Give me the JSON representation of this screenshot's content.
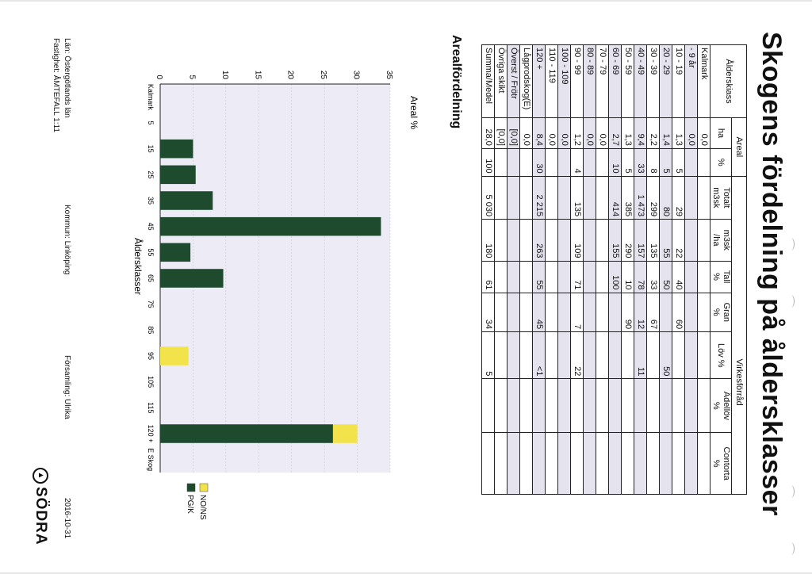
{
  "title": "Skogens fördelning på åldersklasser",
  "table": {
    "group_areal": "Areal",
    "group_virke": "Virkesförråd",
    "headers": {
      "alder": "Ålderskiass",
      "ha": "ha",
      "pct": "%",
      "tot1": "Totalt",
      "tot2": "m3sk",
      "mha1": "m3sk",
      "mha2": "/ha",
      "tall1": "Tall",
      "tall2": "%",
      "gran1": "Gran",
      "gran2": "%",
      "lov": "Löv %",
      "ade1": "Ädellöv",
      "ade2": "%",
      "con1": "Contorta",
      "con2": "%"
    },
    "rows": [
      {
        "label": "Kalmark",
        "ha": "0,0",
        "pct": "",
        "tot": "",
        "mha": "",
        "tall": "",
        "gran": "",
        "lov": "",
        "adel": "",
        "cont": ""
      },
      {
        "label": "- 9 år",
        "ha": "0,0",
        "pct": "",
        "tot": "",
        "mha": "",
        "tall": "",
        "gran": "",
        "lov": "",
        "adel": "",
        "cont": ""
      },
      {
        "label": "10 - 19",
        "ha": "1,3",
        "pct": "5",
        "tot": "29",
        "mha": "22",
        "tall": "40",
        "gran": "60",
        "lov": "",
        "adel": "",
        "cont": ""
      },
      {
        "label": "20 - 29",
        "ha": "1,4",
        "pct": "5",
        "tot": "80",
        "mha": "55",
        "tall": "50",
        "gran": "",
        "lov": "50",
        "adel": "",
        "cont": ""
      },
      {
        "label": "30 - 39",
        "ha": "2,2",
        "pct": "8",
        "tot": "299",
        "mha": "135",
        "tall": "33",
        "gran": "67",
        "lov": "",
        "adel": "",
        "cont": ""
      },
      {
        "label": "40 - 49",
        "ha": "9,4",
        "pct": "33",
        "tot": "1 473",
        "mha": "157",
        "tall": "78",
        "gran": "12",
        "lov": "11",
        "adel": "",
        "cont": ""
      },
      {
        "label": "50 - 59",
        "ha": "1,3",
        "pct": "5",
        "tot": "385",
        "mha": "290",
        "tall": "10",
        "gran": "90",
        "lov": "",
        "adel": "",
        "cont": ""
      },
      {
        "label": "60 - 69",
        "ha": "2,7",
        "pct": "10",
        "tot": "414",
        "mha": "155",
        "tall": "100",
        "gran": "",
        "lov": "",
        "adel": "",
        "cont": ""
      },
      {
        "label": "70 - 79",
        "ha": "0,0",
        "pct": "",
        "tot": "",
        "mha": "",
        "tall": "",
        "gran": "",
        "lov": "",
        "adel": "",
        "cont": ""
      },
      {
        "label": "80 - 89",
        "ha": "0,0",
        "pct": "",
        "tot": "",
        "mha": "",
        "tall": "",
        "gran": "",
        "lov": "",
        "adel": "",
        "cont": ""
      },
      {
        "label": "90 - 99",
        "ha": "1,2",
        "pct": "4",
        "tot": "135",
        "mha": "109",
        "tall": "71",
        "gran": "7",
        "lov": "22",
        "adel": "",
        "cont": ""
      },
      {
        "label": "100 - 109",
        "ha": "0,0",
        "pct": "",
        "tot": "",
        "mha": "",
        "tall": "",
        "gran": "",
        "lov": "",
        "adel": "",
        "cont": ""
      },
      {
        "label": "110 - 119",
        "ha": "0,0",
        "pct": "",
        "tot": "",
        "mha": "",
        "tall": "",
        "gran": "",
        "lov": "",
        "adel": "",
        "cont": ""
      },
      {
        "label": "120 +",
        "ha": "8,4",
        "pct": "30",
        "tot": "2 215",
        "mha": "263",
        "tall": "55",
        "gran": "45",
        "lov": "<1",
        "adel": "",
        "cont": ""
      },
      {
        "label": "Lågprodskog(E)",
        "ha": "0,0",
        "pct": "",
        "tot": "",
        "mha": "",
        "tall": "",
        "gran": "",
        "lov": "",
        "adel": "",
        "cont": ""
      },
      {
        "label": "Överst / Frötr",
        "ha": "[0,0]",
        "pct": "",
        "tot": "",
        "mha": "",
        "tall": "",
        "gran": "",
        "lov": "",
        "adel": "",
        "cont": ""
      },
      {
        "label": "Övriga skikt",
        "ha": "[0,0]",
        "pct": "",
        "tot": "",
        "mha": "",
        "tall": "",
        "gran": "",
        "lov": "",
        "adel": "",
        "cont": ""
      },
      {
        "label": "Summa/Medel",
        "ha": "28,0",
        "pct": "100",
        "tot": "5 030",
        "mha": "180",
        "tall": "61",
        "gran": "34",
        "lov": "5",
        "adel": "",
        "cont": ""
      }
    ]
  },
  "section_title": "Arealfördelning",
  "chart_data": {
    "type": "bar",
    "ylabel": "Areal %",
    "xlabel": "Åldersklasser",
    "ylim": [
      0,
      35
    ],
    "yticks": [
      "0",
      "5",
      "10",
      "15",
      "20",
      "25",
      "30",
      "35"
    ],
    "categories": [
      "Kalmark",
      "5",
      "15",
      "25",
      "35",
      "45",
      "55",
      "65",
      "75",
      "85",
      "95",
      "105",
      "115",
      "120 +",
      "E Skog"
    ],
    "series": [
      {
        "name": "PG/K",
        "color": "#1e4a2e",
        "values": [
          0,
          0,
          5,
          5.4,
          8,
          33.6,
          4.6,
          9.6,
          0,
          0,
          0,
          0,
          0,
          26.3,
          0
        ]
      },
      {
        "name": "NO/NS",
        "color": "#f2e34a",
        "values": [
          0,
          0,
          0,
          0,
          0,
          0,
          0,
          0,
          0,
          0,
          4.3,
          0,
          0,
          3.7,
          0
        ]
      }
    ],
    "legend_position": "right"
  },
  "footer": {
    "lan": "Län: Östergötlands län",
    "kommun": "Kommun: Linköping",
    "forsamling": "Församling: Ulrika",
    "date": "2016-10-31",
    "fastighet": "Fastighet: ÅMTEFALL 1:11"
  },
  "logo_text": "SÖDRA"
}
